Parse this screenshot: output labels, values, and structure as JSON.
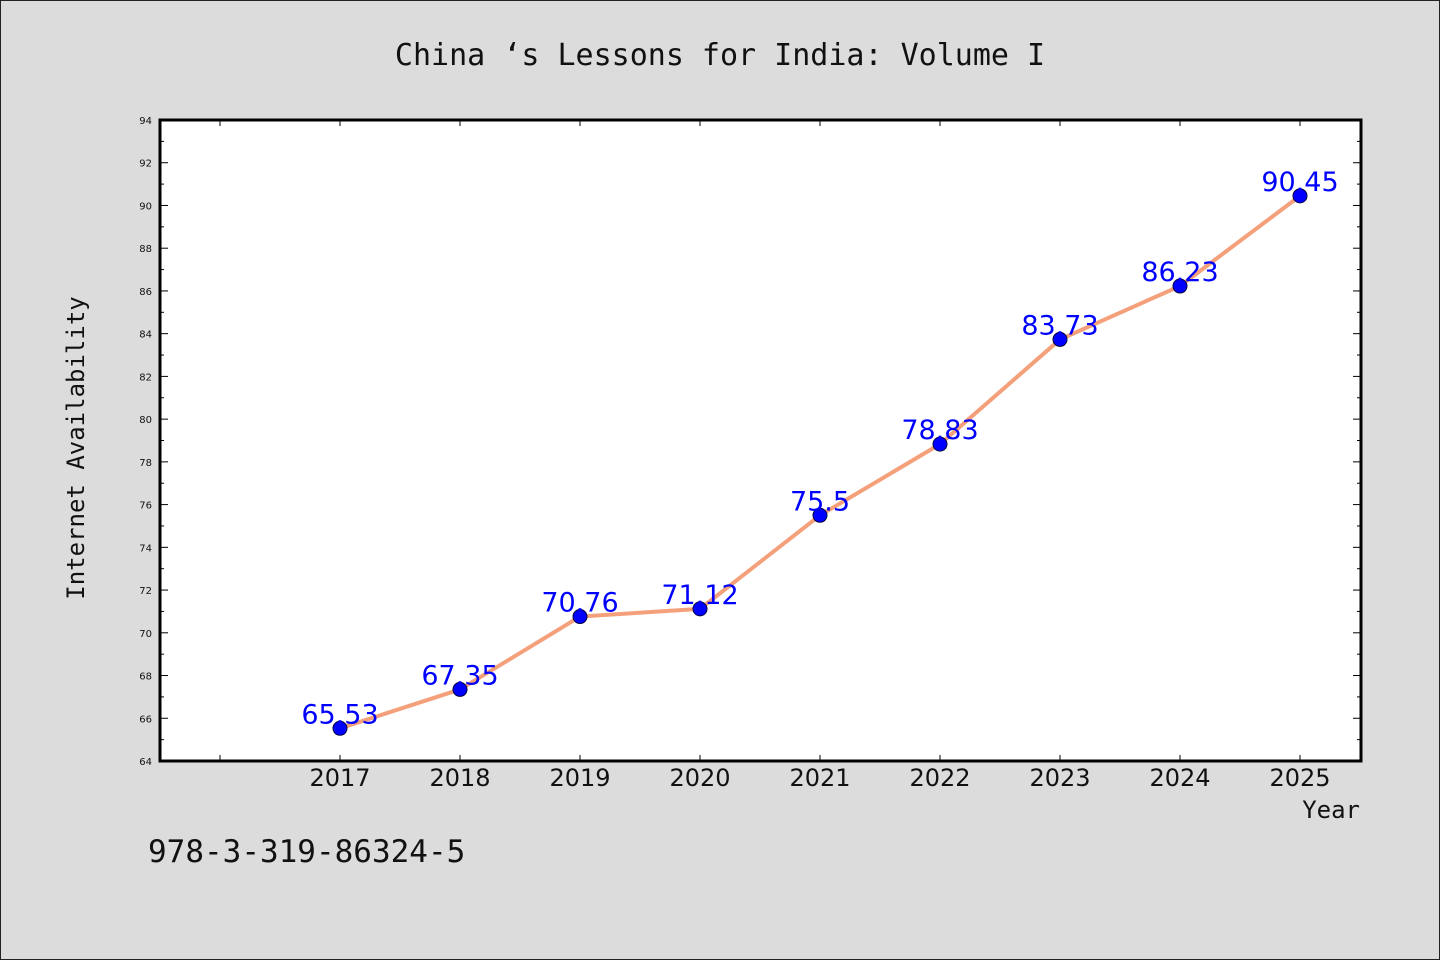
{
  "chart_data": {
    "type": "line",
    "title": "China ‘s Lessons for India: Volume I",
    "xlabel": "Year",
    "ylabel": "Internet Availability",
    "categories": [
      "2017",
      "2018",
      "2019",
      "2020",
      "2021",
      "2022",
      "2023",
      "2024",
      "2025"
    ],
    "values": [
      65.53,
      67.35,
      70.76,
      71.12,
      75.5,
      78.83,
      83.73,
      86.23,
      90.45
    ],
    "data_labels": [
      "65.53",
      "67.35",
      "70.76",
      "71.12",
      "75.5",
      "78.83",
      "83.73",
      "86.23",
      "90.45"
    ],
    "ylim": [
      64,
      94
    ],
    "yticks": [
      "64",
      "66",
      "68",
      "70",
      "72",
      "74",
      "76",
      "78",
      "80",
      "82",
      "84",
      "86",
      "88",
      "90",
      "92",
      "94"
    ],
    "grid": false,
    "line_color": "#f4a07a",
    "marker_color": "#0000ff",
    "label_color": "#0000ff",
    "background": "#dcdcdc",
    "plot_background": "#ffffff"
  },
  "annotation": {
    "isbn": "978-3-319-86324-5"
  }
}
